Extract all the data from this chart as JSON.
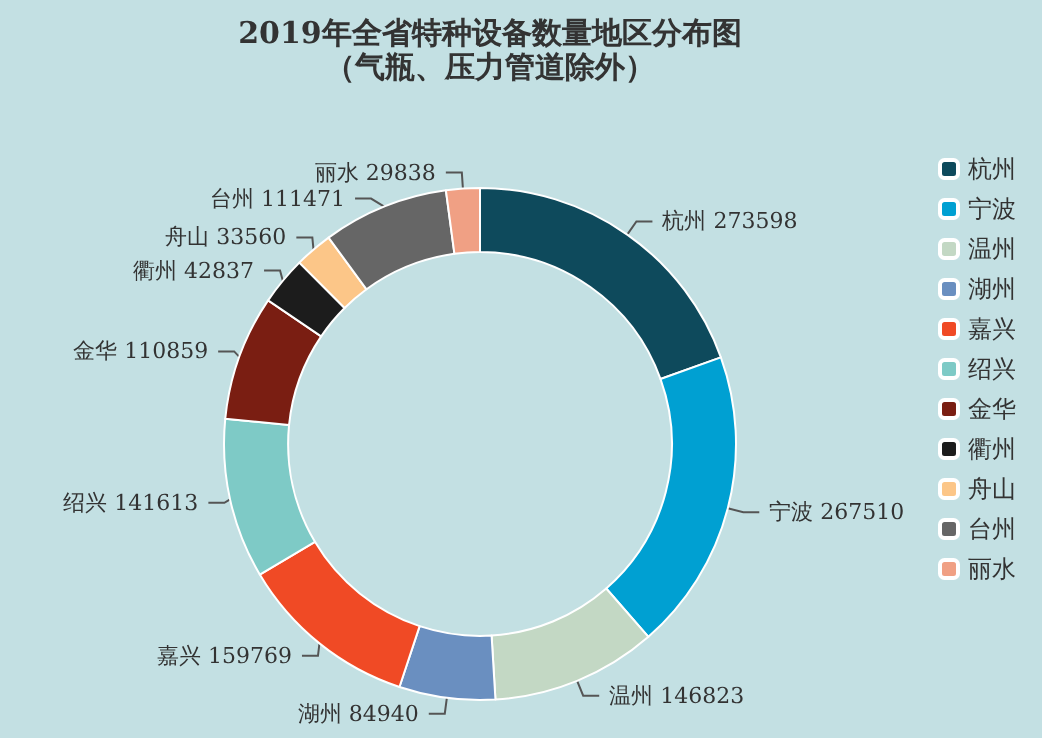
{
  "chart_data": {
    "type": "donut",
    "title": "2019年全省特种设备数量地区分布图",
    "subtitle": "（气瓶、压力管道除外）",
    "categories": [
      "杭州",
      "宁波",
      "温州",
      "湖州",
      "嘉兴",
      "绍兴",
      "金华",
      "衢州",
      "舟山",
      "台州",
      "丽水"
    ],
    "values": [
      273598,
      267510,
      146823,
      84940,
      159769,
      141613,
      110859,
      42837,
      33560,
      111471,
      29838
    ],
    "colors": [
      "#0e4a5c",
      "#00a0d2",
      "#c3d8c4",
      "#6a8fc0",
      "#f04a25",
      "#7ecac6",
      "#7a1e12",
      "#1c1c1c",
      "#fcc688",
      "#666666",
      "#f0a084"
    ],
    "data_labels": true,
    "legend": "right"
  }
}
